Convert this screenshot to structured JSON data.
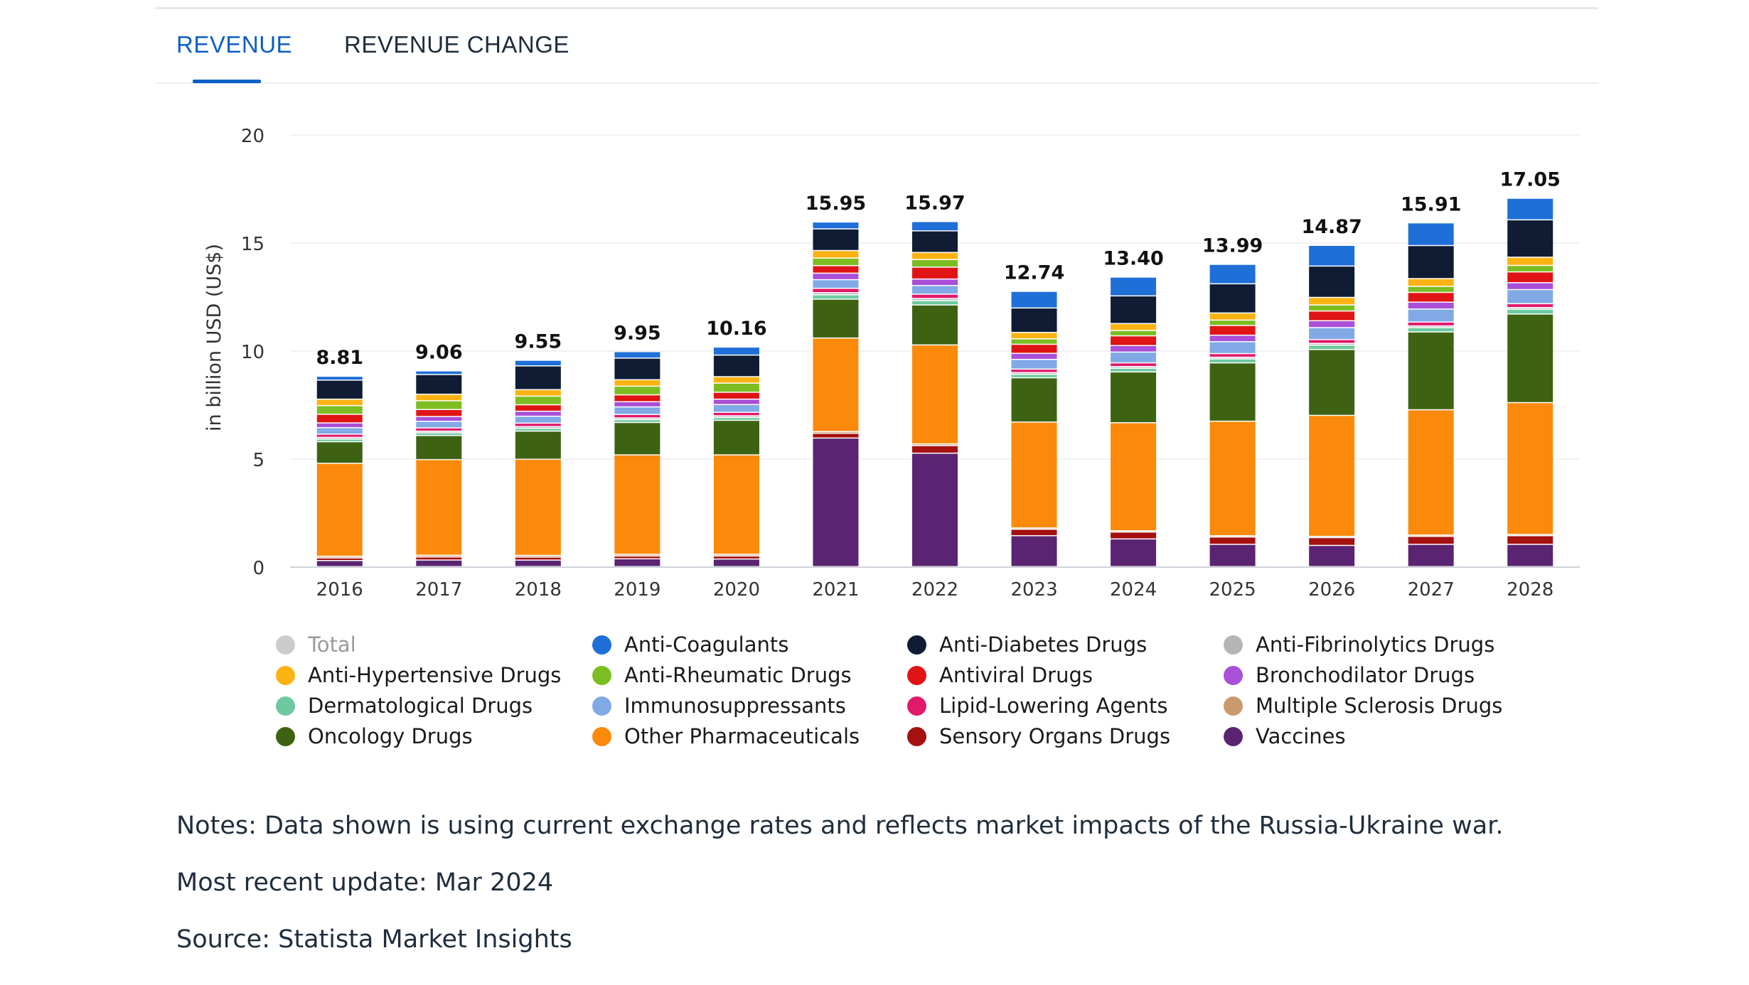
{
  "tabs": {
    "revenue_label": "REVENUE",
    "revenue_change_label": "REVENUE CHANGE"
  },
  "notes": {
    "note": "Notes: Data shown is using current exchange rates and reflects market impacts of the Russia-Ukraine war.",
    "update": "Most recent update: Mar 2024",
    "source": "Source: Statista Market Insights"
  },
  "chart_data": {
    "type": "bar",
    "stacked": true,
    "ylabel": "in billion USD (US$)",
    "ylim": [
      0,
      20
    ],
    "yticks": [
      0,
      5,
      10,
      15,
      20
    ],
    "categories": [
      "2016",
      "2017",
      "2018",
      "2019",
      "2020",
      "2021",
      "2022",
      "2023",
      "2024",
      "2025",
      "2026",
      "2027",
      "2028"
    ],
    "totals": [
      8.81,
      9.06,
      9.55,
      9.95,
      10.16,
      15.95,
      15.97,
      12.74,
      13.4,
      13.99,
      14.87,
      15.91,
      17.05
    ],
    "total_labels": [
      "8.81",
      "9.06",
      "9.55",
      "9.95",
      "10.16",
      "15.95",
      "15.97",
      "12.74",
      "13.40",
      "13.99",
      "14.87",
      "15.91",
      "17.05"
    ],
    "legend_position": "bottom",
    "legend": [
      {
        "name": "Total",
        "color": "#cccccc",
        "dim": true
      },
      {
        "name": "Anti-Coagulants",
        "color": "#1f6fd8"
      },
      {
        "name": "Anti-Diabetes Drugs",
        "color": "#0f1c33"
      },
      {
        "name": "Anti-Fibrinolytics Drugs",
        "color": "#b5b5b5"
      },
      {
        "name": "Anti-Hypertensive Drugs",
        "color": "#fbb313"
      },
      {
        "name": "Anti-Rheumatic Drugs",
        "color": "#7cbd22"
      },
      {
        "name": "Antiviral Drugs",
        "color": "#e01414"
      },
      {
        "name": "Bronchodilator Drugs",
        "color": "#a94fd8"
      },
      {
        "name": "Dermatological Drugs",
        "color": "#6cc9a0"
      },
      {
        "name": "Immunosuppressants",
        "color": "#80a9e6"
      },
      {
        "name": "Lipid-Lowering Agents",
        "color": "#e0196b"
      },
      {
        "name": "Multiple Sclerosis Drugs",
        "color": "#c99a6b"
      },
      {
        "name": "Oncology Drugs",
        "color": "#3d6312"
      },
      {
        "name": "Other Pharmaceuticals",
        "color": "#fb8a0a"
      },
      {
        "name": "Sensory Organs Drugs",
        "color": "#a51010"
      },
      {
        "name": "Vaccines",
        "color": "#5b2472"
      }
    ],
    "series": [
      {
        "name": "Vaccines",
        "color": "#5b2472",
        "values": [
          0.28,
          0.3,
          0.3,
          0.36,
          0.35,
          5.95,
          5.25,
          1.43,
          1.28,
          1.03,
          0.98,
          1.03,
          1.03
        ]
      },
      {
        "name": "Sensory Organs Drugs",
        "color": "#a51010",
        "values": [
          0.12,
          0.14,
          0.14,
          0.13,
          0.14,
          0.22,
          0.35,
          0.3,
          0.32,
          0.34,
          0.36,
          0.37,
          0.4
        ]
      },
      {
        "name": "Multiple Sclerosis Drugs",
        "color": "#c99a6b",
        "values": [
          0.08,
          0.08,
          0.08,
          0.08,
          0.08,
          0.08,
          0.08,
          0.06,
          0.06,
          0.06,
          0.06,
          0.06,
          0.06
        ]
      },
      {
        "name": "Other Pharmaceuticals",
        "color": "#fb8a0a",
        "values": [
          4.3,
          4.38,
          4.45,
          4.6,
          4.6,
          4.33,
          4.58,
          4.9,
          5.0,
          5.3,
          5.6,
          5.8,
          6.1
        ]
      },
      {
        "name": "Oncology Drugs",
        "color": "#3d6312",
        "values": [
          1.0,
          1.1,
          1.3,
          1.5,
          1.6,
          1.8,
          1.85,
          2.05,
          2.35,
          2.7,
          3.05,
          3.6,
          4.1
        ]
      },
      {
        "name": "Dermatological Drugs",
        "color": "#6cc9a0",
        "values": [
          0.12,
          0.12,
          0.13,
          0.13,
          0.13,
          0.2,
          0.2,
          0.16,
          0.17,
          0.18,
          0.2,
          0.2,
          0.22
        ]
      },
      {
        "name": "Anti-Fibrinolytics Drugs",
        "color": "#b5b5b5",
        "values": [
          0.08,
          0.08,
          0.08,
          0.08,
          0.08,
          0.1,
          0.1,
          0.08,
          0.08,
          0.08,
          0.08,
          0.08,
          0.08
        ]
      },
      {
        "name": "Lipid-Lowering Agents",
        "color": "#e0196b",
        "values": [
          0.15,
          0.15,
          0.16,
          0.16,
          0.16,
          0.2,
          0.2,
          0.16,
          0.17,
          0.17,
          0.18,
          0.18,
          0.18
        ]
      },
      {
        "name": "Immunosuppressants",
        "color": "#80a9e6",
        "values": [
          0.3,
          0.3,
          0.32,
          0.35,
          0.36,
          0.4,
          0.4,
          0.45,
          0.5,
          0.55,
          0.55,
          0.6,
          0.65
        ]
      },
      {
        "name": "Bronchodilator Drugs",
        "color": "#a94fd8",
        "values": [
          0.22,
          0.22,
          0.23,
          0.24,
          0.25,
          0.3,
          0.3,
          0.28,
          0.3,
          0.3,
          0.32,
          0.32,
          0.32
        ]
      },
      {
        "name": "Antiviral Drugs",
        "color": "#e01414",
        "values": [
          0.4,
          0.32,
          0.3,
          0.32,
          0.32,
          0.35,
          0.55,
          0.42,
          0.45,
          0.45,
          0.45,
          0.45,
          0.5
        ]
      },
      {
        "name": "Anti-Rheumatic Drugs",
        "color": "#7cbd22",
        "values": [
          0.4,
          0.4,
          0.4,
          0.4,
          0.42,
          0.35,
          0.35,
          0.25,
          0.25,
          0.25,
          0.28,
          0.28,
          0.3
        ]
      },
      {
        "name": "Anti-Hypertensive Drugs",
        "color": "#fbb313",
        "values": [
          0.3,
          0.3,
          0.3,
          0.3,
          0.3,
          0.35,
          0.33,
          0.3,
          0.32,
          0.33,
          0.35,
          0.36,
          0.38
        ]
      },
      {
        "name": "Anti-Diabetes Drugs",
        "color": "#0f1c33",
        "values": [
          0.88,
          0.9,
          1.1,
          1.0,
          1.0,
          1.0,
          1.0,
          1.13,
          1.28,
          1.35,
          1.45,
          1.53,
          1.73
        ]
      },
      {
        "name": "Anti-Coagulants",
        "color": "#1f6fd8",
        "values": [
          0.18,
          0.17,
          0.26,
          0.3,
          0.37,
          0.32,
          0.43,
          0.77,
          0.87,
          0.9,
          0.96,
          1.05,
          1.0
        ]
      }
    ]
  }
}
